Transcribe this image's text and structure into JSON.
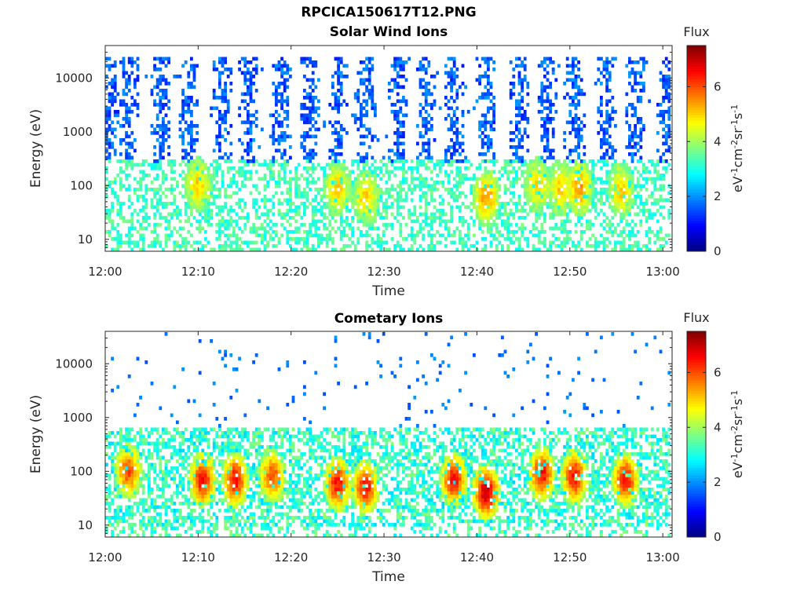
{
  "figure": {
    "title": "RPCICA150617T12.PNG"
  },
  "chart_data": [
    {
      "type": "heatmap",
      "title": "Solar Wind Ions",
      "xlabel": "Time",
      "ylabel": "Energy (eV)",
      "x_ticks": [
        "12:00",
        "12:10",
        "12:20",
        "12:30",
        "12:40",
        "12:50",
        "13:00"
      ],
      "x_range": [
        "12:00",
        "13:01"
      ],
      "y_scale": "log",
      "y_ticks": [
        "10",
        "100",
        "1000",
        "10000"
      ],
      "ylim": [
        6,
        40000
      ],
      "colorbar": {
        "title": "Flux",
        "label": "eV-1cm-2sr-1s-1",
        "ticks": [
          "0",
          "2",
          "4",
          "6"
        ],
        "range": [
          0,
          7.5
        ],
        "colormap": "jet"
      },
      "description_of_values": {
        "high_energy_bursts_minutes": [
          0.5,
          2.5,
          6,
          9,
          12.5,
          15.5,
          19,
          22,
          25,
          28,
          31.5,
          34.5,
          37.5,
          41,
          44.5,
          47.5,
          50.5,
          54,
          57,
          60.5
        ],
        "high_energy_band_eV": [
          300,
          20000
        ],
        "high_energy_flux": 1.6,
        "low_energy_band_eV": [
          6,
          300
        ],
        "low_energy_flux": 3.3,
        "peak_flux_regions": [
          {
            "time_min": 10,
            "energy_eV": 100,
            "flux": 5
          },
          {
            "time_min": 25,
            "energy_eV": 90,
            "flux": 5
          },
          {
            "time_min": 28,
            "energy_eV": 60,
            "flux": 5
          },
          {
            "time_min": 41,
            "energy_eV": 60,
            "flux": 5.5
          },
          {
            "time_min": 46.5,
            "energy_eV": 100,
            "flux": 5
          },
          {
            "time_min": 49,
            "energy_eV": 90,
            "flux": 5
          },
          {
            "time_min": 51,
            "energy_eV": 90,
            "flux": 5.5
          },
          {
            "time_min": 55.5,
            "energy_eV": 80,
            "flux": 5
          }
        ]
      }
    },
    {
      "type": "heatmap",
      "title": "Cometary Ions",
      "xlabel": "Time",
      "ylabel": "Energy (eV)",
      "x_ticks": [
        "12:00",
        "12:10",
        "12:20",
        "12:30",
        "12:40",
        "12:50",
        "13:00"
      ],
      "x_range": [
        "12:00",
        "13:01"
      ],
      "y_scale": "log",
      "y_ticks": [
        "10",
        "100",
        "1000",
        "10000"
      ],
      "ylim": [
        6,
        40000
      ],
      "colorbar": {
        "title": "Flux",
        "label": "eV-1cm-2sr-1s-1",
        "ticks": [
          "0",
          "2",
          "4",
          "6"
        ],
        "range": [
          0,
          7.5
        ],
        "colormap": "jet"
      },
      "description_of_values": {
        "main_band_eV": [
          10,
          700
        ],
        "main_band_flux": 4.5,
        "sparse_high_energy_flux": 1.5,
        "peak_flux_regions": [
          {
            "time_min": 2.5,
            "energy_eV": 100,
            "flux": 6
          },
          {
            "time_min": 10.5,
            "energy_eV": 70,
            "flux": 6.5
          },
          {
            "time_min": 14,
            "energy_eV": 70,
            "flux": 6.5
          },
          {
            "time_min": 18,
            "energy_eV": 80,
            "flux": 6
          },
          {
            "time_min": 25,
            "energy_eV": 60,
            "flux": 6.5
          },
          {
            "time_min": 28,
            "energy_eV": 50,
            "flux": 6.5
          },
          {
            "time_min": 37.5,
            "energy_eV": 70,
            "flux": 6.5
          },
          {
            "time_min": 41,
            "energy_eV": 40,
            "flux": 7
          },
          {
            "time_min": 47,
            "energy_eV": 90,
            "flux": 6.5
          },
          {
            "time_min": 50.5,
            "energy_eV": 80,
            "flux": 6.5
          },
          {
            "time_min": 56,
            "energy_eV": 70,
            "flux": 6.5
          }
        ]
      }
    }
  ]
}
